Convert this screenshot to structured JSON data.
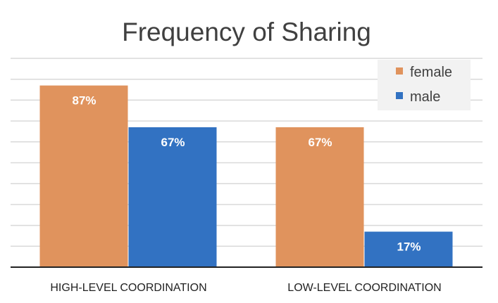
{
  "chart_data": {
    "type": "bar",
    "title": "Frequency of Sharing",
    "categories": [
      "HIGH-LEVEL COORDINATION",
      "LOW-LEVEL COORDINATION"
    ],
    "series": [
      {
        "name": "female",
        "values": [
          87,
          67
        ],
        "labels": [
          "87%",
          "67%"
        ],
        "color": "#E0935D"
      },
      {
        "name": "male",
        "values": [
          67,
          17
        ],
        "labels": [
          "67%",
          "17%"
        ],
        "color": "#3272C2"
      }
    ],
    "xlabel": "",
    "ylabel": "",
    "ylim": [
      0,
      100
    ],
    "grid": true,
    "grid_step": 10,
    "legend_position": "top-right"
  }
}
